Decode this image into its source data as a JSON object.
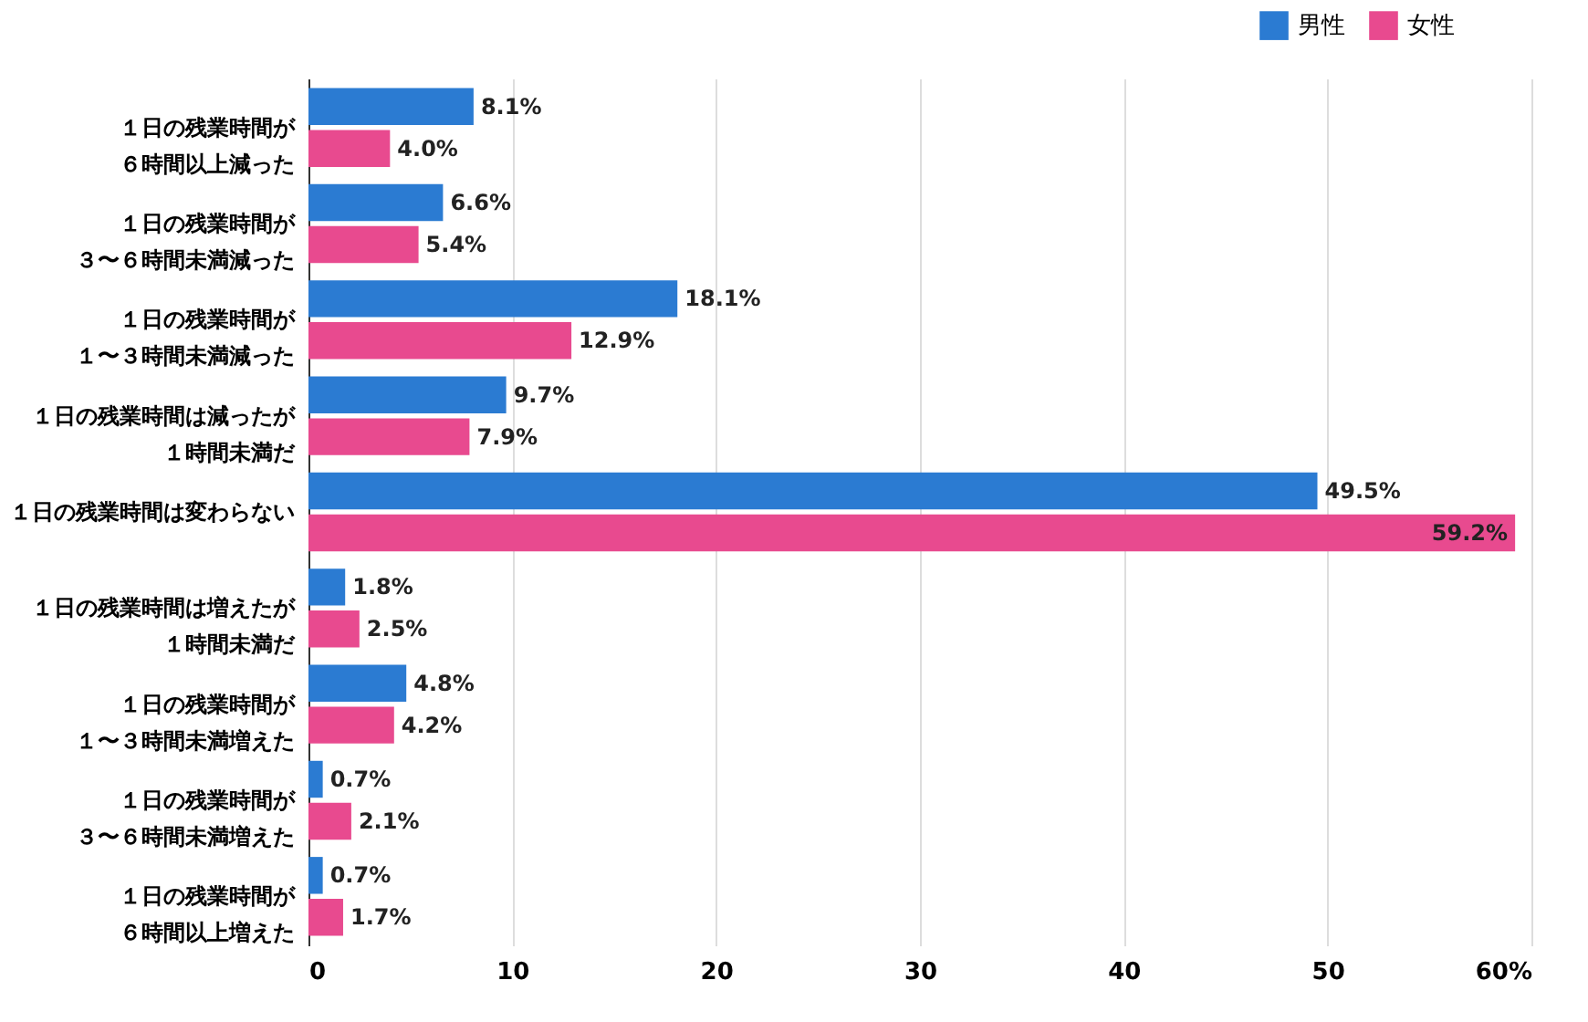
{
  "chart_data": {
    "type": "bar",
    "orientation": "horizontal",
    "categories": [
      "１日の残業時間が６時間以上減った",
      "１日の残業時間が３〜６時間未満減った",
      "１日の残業時間が１〜３時間未満減った",
      "１日の残業時間は減ったが１時間未満だ",
      "１日の残業時間は変わらない",
      "１日の残業時間は増えたが１時間未満だ",
      "１日の残業時間が１〜３時間未満増えた",
      "１日の残業時間が３〜６時間未満増えた",
      "１日の残業時間が６時間以上増えた"
    ],
    "series": [
      {
        "name": "男性",
        "color": "#2b7bd2",
        "values": [
          8.1,
          6.6,
          18.1,
          9.7,
          49.5,
          1.8,
          4.8,
          0.7,
          0.7
        ],
        "value_labels": [
          "8.1%",
          "6.6%",
          "18.1%",
          "9.7%",
          "49.5%",
          "1.8%",
          "4.8%",
          "0.7%",
          "0.7%"
        ]
      },
      {
        "name": "女性",
        "color": "#e84a8f",
        "values": [
          4.0,
          5.4,
          12.9,
          7.9,
          59.2,
          2.5,
          4.2,
          2.1,
          1.7
        ],
        "value_labels": [
          "4.0%",
          "5.4%",
          "12.9%",
          "7.9%",
          "59.2%",
          "2.5%",
          "4.2%",
          "2.1%",
          "1.7%"
        ]
      }
    ],
    "xlim": [
      0,
      60
    ],
    "xticks": [
      0,
      10,
      20,
      30,
      40,
      50,
      {
        "value": 60,
        "label": "60%"
      }
    ],
    "grid": "x",
    "legend": "top right"
  }
}
